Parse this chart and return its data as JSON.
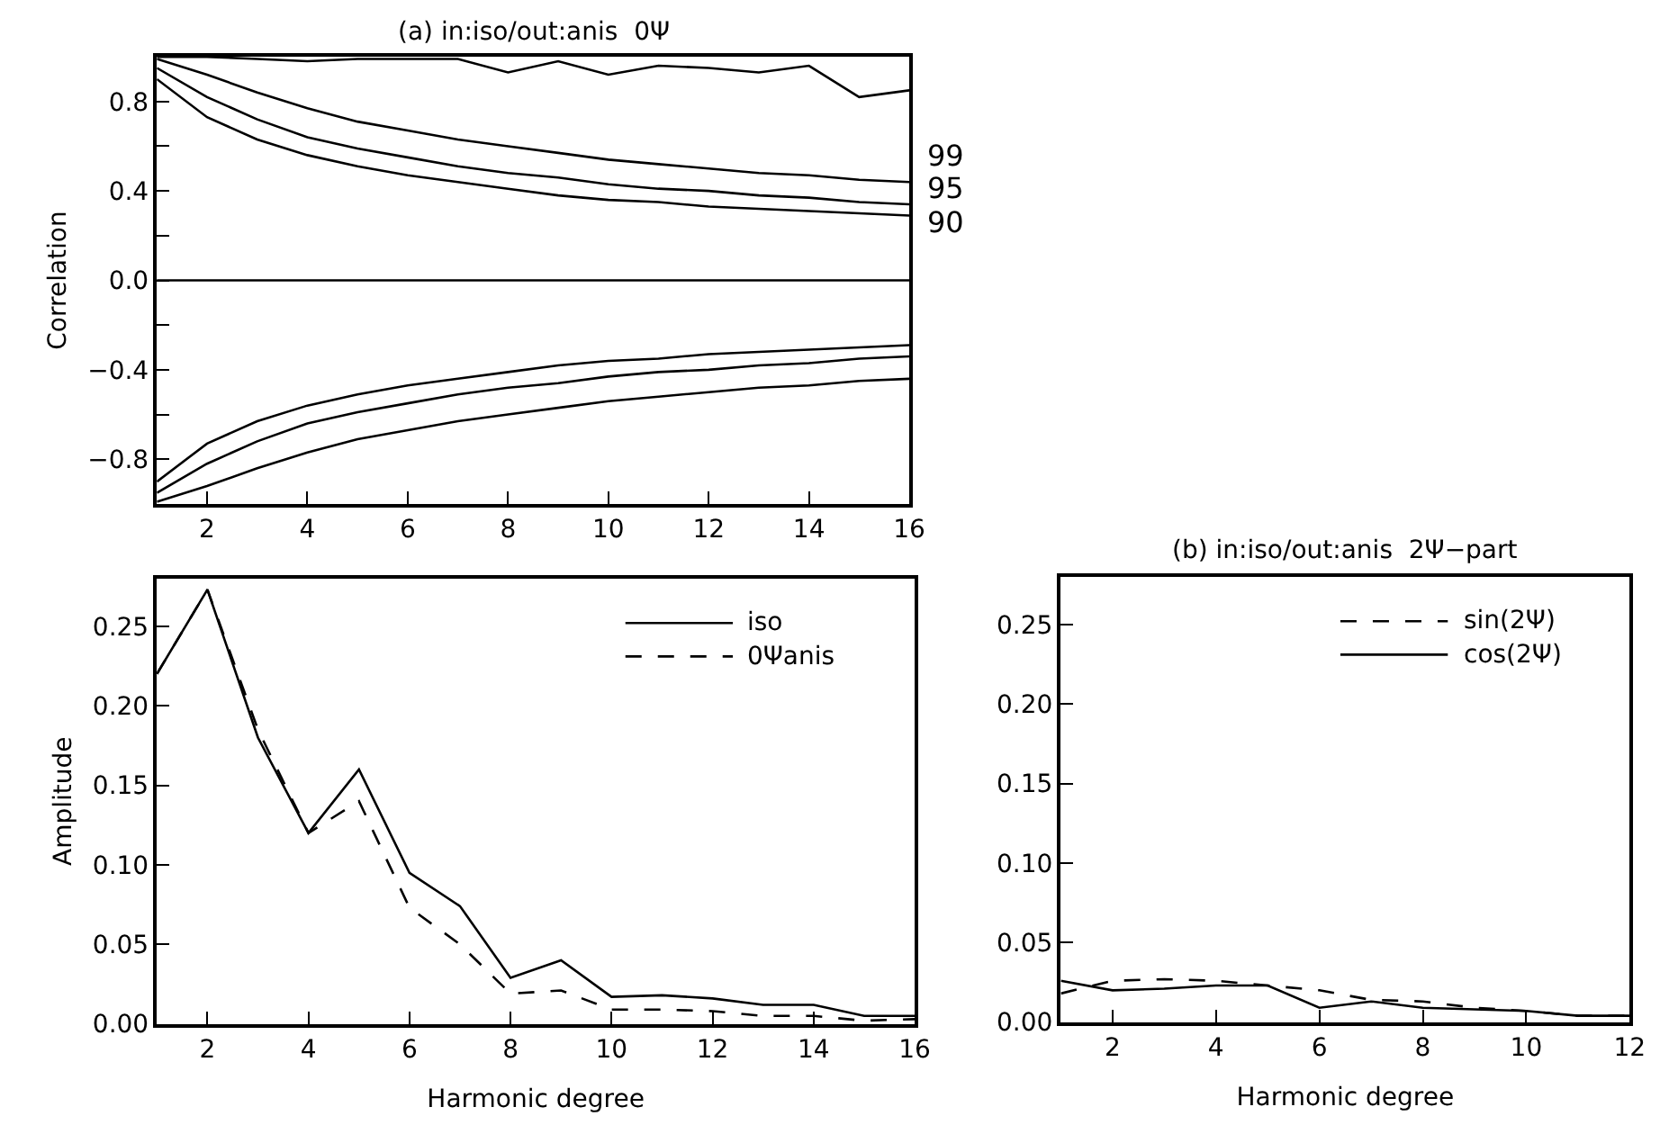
{
  "chart_data": [
    {
      "type": "line",
      "title": "(a) in:iso/out:anis  0Ψ",
      "ylabel": "Correlation",
      "xlim": [
        1,
        16
      ],
      "ylim": [
        -1,
        1
      ],
      "xticks": [
        2,
        4,
        6,
        8,
        10,
        12,
        14,
        16
      ],
      "yticks": [
        {
          "value": -0.8,
          "label": "−0.8"
        },
        {
          "value": -0.6,
          "label": null
        },
        {
          "value": -0.4,
          "label": "−0.4"
        },
        {
          "value": -0.2,
          "label": null
        },
        {
          "value": 0,
          "label": "0.0"
        },
        {
          "value": 0.2,
          "label": null
        },
        0.4,
        {
          "value": 0.6,
          "label": null
        },
        0.8
      ],
      "x": [
        1,
        2,
        3,
        4,
        5,
        6,
        7,
        8,
        9,
        10,
        11,
        12,
        13,
        14,
        15,
        16
      ],
      "legend": false,
      "series": [
        {
          "color": "#000000",
          "line_style": "solid",
          "values": [
            1.0,
            1.0,
            0.99,
            0.98,
            0.99,
            0.99,
            0.99,
            0.93,
            0.98,
            0.92,
            0.96,
            0.95,
            0.93,
            0.96,
            0.82,
            0.85
          ]
        },
        {
          "color": "#000000",
          "line_style": "solid",
          "values": [
            0.99,
            0.92,
            0.84,
            0.77,
            0.71,
            0.67,
            0.63,
            0.6,
            0.57,
            0.54,
            0.52,
            0.5,
            0.48,
            0.47,
            0.45,
            0.44
          ]
        },
        {
          "color": "#000000",
          "line_style": "solid",
          "values": [
            0.95,
            0.82,
            0.72,
            0.64,
            0.59,
            0.55,
            0.51,
            0.48,
            0.46,
            0.43,
            0.41,
            0.4,
            0.38,
            0.37,
            0.35,
            0.34
          ]
        },
        {
          "color": "#000000",
          "line_style": "solid",
          "values": [
            0.9,
            0.73,
            0.63,
            0.56,
            0.51,
            0.47,
            0.44,
            0.41,
            0.38,
            0.36,
            0.35,
            0.33,
            0.32,
            0.31,
            0.3,
            0.29
          ]
        },
        {
          "color": "#000000",
          "line_style": "solid",
          "values": [
            -0.99,
            -0.92,
            -0.84,
            -0.77,
            -0.71,
            -0.67,
            -0.63,
            -0.6,
            -0.57,
            -0.54,
            -0.52,
            -0.5,
            -0.48,
            -0.47,
            -0.45,
            -0.44
          ]
        },
        {
          "color": "#000000",
          "line_style": "solid",
          "values": [
            -0.95,
            -0.82,
            -0.72,
            -0.64,
            -0.59,
            -0.55,
            -0.51,
            -0.48,
            -0.46,
            -0.43,
            -0.41,
            -0.4,
            -0.38,
            -0.37,
            -0.35,
            -0.34
          ]
        },
        {
          "color": "#000000",
          "line_style": "solid",
          "values": [
            -0.9,
            -0.73,
            -0.63,
            -0.56,
            -0.51,
            -0.47,
            -0.44,
            -0.41,
            -0.38,
            -0.36,
            -0.35,
            -0.33,
            -0.32,
            -0.31,
            -0.3,
            -0.29
          ]
        }
      ],
      "ref_lines": [
        {
          "axis": "y",
          "value": 0,
          "color": "#000000",
          "line_style": "solid"
        }
      ],
      "annotations": [
        "99",
        "95",
        "90"
      ]
    },
    {
      "type": "line",
      "xlabel": "Harmonic degree",
      "ylabel": "Amplitude",
      "xlim": [
        1,
        16
      ],
      "ylim": [
        0,
        0.28
      ],
      "xticks": [
        2,
        4,
        6,
        8,
        10,
        12,
        14,
        16
      ],
      "yticks": [
        {
          "value": 0,
          "label": "0.00"
        },
        {
          "value": 0.05,
          "label": "0.05"
        },
        {
          "value": 0.1,
          "label": "0.10"
        },
        {
          "value": 0.15,
          "label": "0.15"
        },
        {
          "value": 0.2,
          "label": "0.20"
        },
        {
          "value": 0.25,
          "label": "0.25"
        }
      ],
      "x": [
        1,
        2,
        3,
        4,
        5,
        6,
        7,
        8,
        9,
        10,
        11,
        12,
        13,
        14,
        15,
        16
      ],
      "legend": "top right",
      "series": [
        {
          "name": "iso",
          "color": "#000000",
          "line_style": "solid",
          "values": [
            0.22,
            0.273,
            0.18,
            0.12,
            0.16,
            0.095,
            0.074,
            0.029,
            0.04,
            0.017,
            0.018,
            0.016,
            0.012,
            0.012,
            0.005,
            0.005
          ]
        },
        {
          "name": "0Ψanis",
          "color": "#000000",
          "line_style": "dashed",
          "values": [
            0.22,
            0.273,
            0.185,
            0.12,
            0.14,
            0.073,
            0.05,
            0.019,
            0.021,
            0.009,
            0.009,
            0.008,
            0.005,
            0.005,
            0.002,
            0.003
          ]
        }
      ]
    },
    {
      "type": "line",
      "title": "(b) in:iso/out:anis  2Ψ−part",
      "xlabel": "Harmonic degree",
      "xlim": [
        1,
        12
      ],
      "ylim": [
        0,
        0.28
      ],
      "xticks": [
        2,
        4,
        6,
        8,
        10,
        12
      ],
      "yticks": [
        {
          "value": 0,
          "label": "0.00"
        },
        {
          "value": 0.05,
          "label": "0.05"
        },
        {
          "value": 0.1,
          "label": "0.10"
        },
        {
          "value": 0.15,
          "label": "0.15"
        },
        {
          "value": 0.2,
          "label": "0.20"
        },
        {
          "value": 0.25,
          "label": "0.25"
        }
      ],
      "x": [
        1,
        2,
        3,
        4,
        5,
        6,
        7,
        8,
        9,
        10,
        11,
        12
      ],
      "legend": "top right",
      "series": [
        {
          "name": "sin(2Ψ)",
          "color": "#000000",
          "line_style": "dashed",
          "values": [
            0.018,
            0.026,
            0.027,
            0.026,
            0.023,
            0.02,
            0.014,
            0.013,
            0.009,
            0.007,
            0.004,
            0.004
          ]
        },
        {
          "name": "cos(2Ψ)",
          "color": "#000000",
          "line_style": "solid",
          "values": [
            0.026,
            0.02,
            0.021,
            0.023,
            0.023,
            0.009,
            0.013,
            0.009,
            0.008,
            0.007,
            0.004,
            0.004
          ]
        }
      ]
    }
  ]
}
